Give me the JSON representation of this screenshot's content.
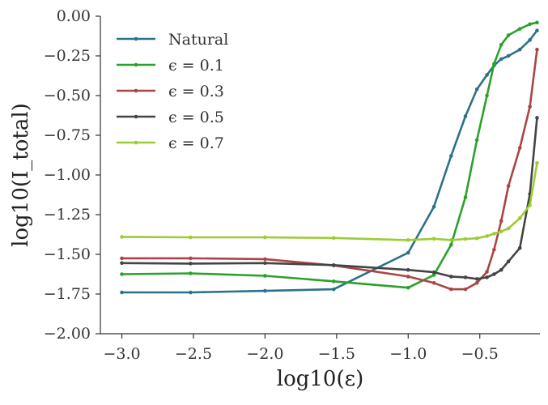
{
  "chart_data": {
    "type": "line",
    "xlabel": "log10(ε)",
    "ylabel": "log10(I_total)",
    "xlim": [
      -3.15,
      -0.08
    ],
    "ylim": [
      -2.0,
      0.0
    ],
    "xticks": [
      -3.0,
      -2.5,
      -2.0,
      -1.5,
      -1.0,
      -0.5
    ],
    "xtick_labels": [
      "−3.0",
      "−2.5",
      "−2.0",
      "−1.5",
      "−1.0",
      "−0.5"
    ],
    "yticks": [
      0.0,
      -0.25,
      -0.5,
      -0.75,
      -1.0,
      -1.25,
      -1.5,
      -1.75,
      -2.0
    ],
    "ytick_labels": [
      "0.00",
      "−0.25",
      "−0.50",
      "−0.75",
      "−1.00",
      "−1.25",
      "−1.50",
      "−1.75",
      "−2.00"
    ],
    "grid": false,
    "legend_position": "top-left",
    "series": [
      {
        "name": "Natural",
        "color": "#2b7189",
        "x": [
          -3.0,
          -2.52,
          -2.0,
          -1.52,
          -1.0,
          -0.82,
          -0.7,
          -0.6,
          -0.52,
          -0.45,
          -0.4,
          -0.35,
          -0.3,
          -0.22,
          -0.15,
          -0.1
        ],
        "y": [
          -1.74,
          -1.74,
          -1.73,
          -1.72,
          -1.49,
          -1.2,
          -0.88,
          -0.63,
          -0.46,
          -0.37,
          -0.31,
          -0.27,
          -0.25,
          -0.21,
          -0.15,
          -0.09
        ]
      },
      {
        "name": "ϵ = 0.1",
        "color": "#2ca02c",
        "x": [
          -3.0,
          -2.52,
          -2.0,
          -1.52,
          -1.0,
          -0.82,
          -0.7,
          -0.6,
          -0.52,
          -0.45,
          -0.4,
          -0.35,
          -0.3,
          -0.22,
          -0.15,
          -0.1
        ],
        "y": [
          -1.625,
          -1.62,
          -1.635,
          -1.67,
          -1.71,
          -1.63,
          -1.44,
          -1.14,
          -0.78,
          -0.5,
          -0.3,
          -0.18,
          -0.12,
          -0.08,
          -0.05,
          -0.04
        ]
      },
      {
        "name": "ϵ = 0.3",
        "color": "#aa4545",
        "x": [
          -3.0,
          -2.52,
          -2.0,
          -1.52,
          -1.0,
          -0.82,
          -0.7,
          -0.6,
          -0.52,
          -0.45,
          -0.4,
          -0.35,
          -0.3,
          -0.22,
          -0.15,
          -0.1
        ],
        "y": [
          -1.525,
          -1.525,
          -1.53,
          -1.57,
          -1.64,
          -1.68,
          -1.72,
          -1.72,
          -1.68,
          -1.61,
          -1.47,
          -1.29,
          -1.07,
          -0.83,
          -0.57,
          -0.21
        ]
      },
      {
        "name": "ϵ = 0.5",
        "color": "#444444",
        "x": [
          -3.0,
          -2.52,
          -2.0,
          -1.52,
          -1.0,
          -0.82,
          -0.7,
          -0.6,
          -0.52,
          -0.45,
          -0.4,
          -0.35,
          -0.3,
          -0.22,
          -0.15,
          -0.1
        ],
        "y": [
          -1.555,
          -1.558,
          -1.555,
          -1.568,
          -1.598,
          -1.613,
          -1.64,
          -1.645,
          -1.655,
          -1.645,
          -1.625,
          -1.598,
          -1.545,
          -1.46,
          -1.12,
          -0.64
        ]
      },
      {
        "name": "ϵ = 0.7",
        "color": "#9acd32",
        "x": [
          -3.0,
          -2.52,
          -2.0,
          -1.52,
          -1.0,
          -0.82,
          -0.7,
          -0.6,
          -0.52,
          -0.45,
          -0.4,
          -0.35,
          -0.3,
          -0.22,
          -0.15,
          -0.1
        ],
        "y": [
          -1.39,
          -1.393,
          -1.393,
          -1.397,
          -1.41,
          -1.402,
          -1.41,
          -1.403,
          -1.399,
          -1.385,
          -1.37,
          -1.356,
          -1.337,
          -1.272,
          -1.19,
          -0.925
        ]
      }
    ]
  }
}
